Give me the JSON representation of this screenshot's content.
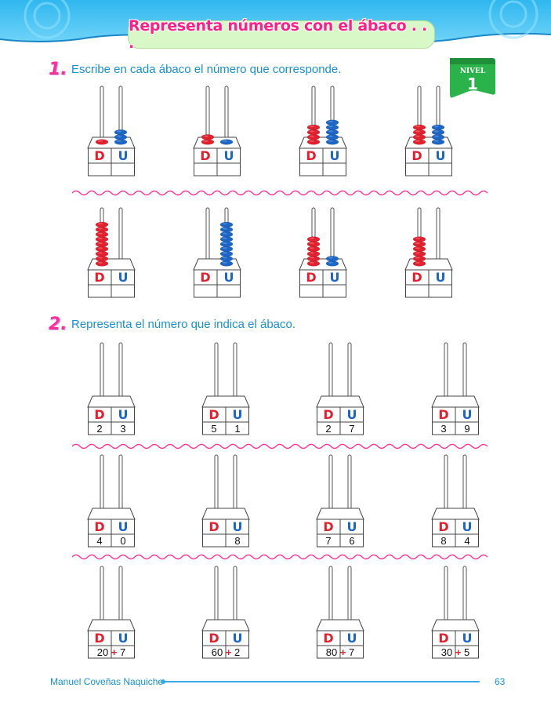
{
  "header": {
    "title": "Representa números con el ábaco . . ."
  },
  "level_badge": {
    "label": "NIVEL",
    "number": "1"
  },
  "colors": {
    "red": "#e2202e",
    "blue": "#1d66c6",
    "pink": "#ff2f95",
    "cyan": "#1a90d3",
    "green": "#2bb34b"
  },
  "exercise1": {
    "number": "1.",
    "instruction": "Escribe en cada ábaco el número que corresponde.",
    "column_labels": {
      "tens": "D",
      "units": "U"
    },
    "abacuses": [
      {
        "tens_beads": 1,
        "units_beads": 3
      },
      {
        "tens_beads": 2,
        "units_beads": 1
      },
      {
        "tens_beads": 4,
        "units_beads": 5
      },
      {
        "tens_beads": 4,
        "units_beads": 4
      },
      {
        "tens_beads": 9,
        "units_beads": 0
      },
      {
        "tens_beads": 0,
        "units_beads": 9
      },
      {
        "tens_beads": 6,
        "units_beads": 2
      },
      {
        "tens_beads": 6,
        "units_beads": 0
      }
    ]
  },
  "exercise2": {
    "number": "2.",
    "instruction": "Representa el número que indica el ábaco.",
    "column_labels": {
      "tens": "D",
      "units": "U"
    },
    "rows": [
      [
        {
          "d": "2",
          "u": "3"
        },
        {
          "d": "5",
          "u": "1"
        },
        {
          "d": "2",
          "u": "7"
        },
        {
          "d": "3",
          "u": "9"
        }
      ],
      [
        {
          "d": "4",
          "u": "0"
        },
        {
          "d": "",
          "u": "8"
        },
        {
          "d": "7",
          "u": "6"
        },
        {
          "d": "8",
          "u": "4"
        }
      ],
      [
        {
          "a": "20",
          "op": "+",
          "b": "7"
        },
        {
          "a": "60",
          "op": "+",
          "b": "2"
        },
        {
          "a": "80",
          "op": "+",
          "b": "7"
        },
        {
          "a": "30",
          "op": "+",
          "b": "5"
        }
      ]
    ]
  },
  "footer": {
    "author": "Manuel Coveñas Naquiche",
    "page_number": "63"
  }
}
